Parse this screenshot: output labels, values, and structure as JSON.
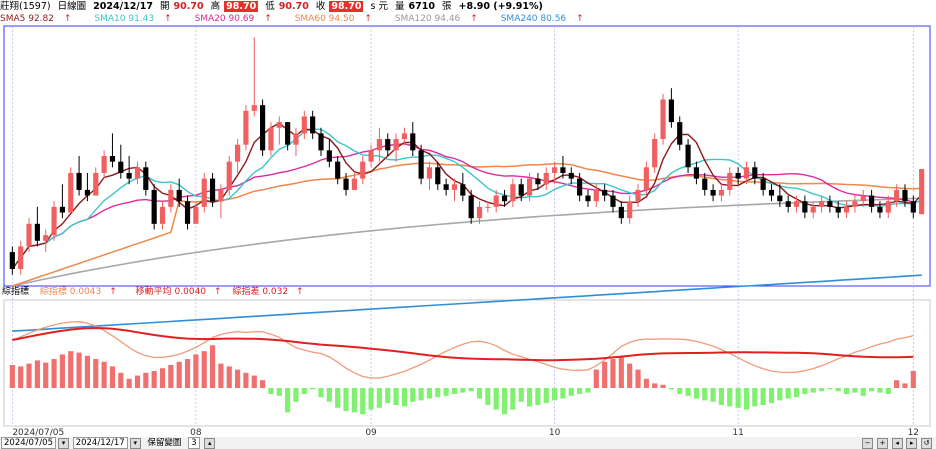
{
  "header": {
    "name": "莊翔(1597)",
    "period": "日線圖",
    "date": "2024/12/17",
    "open_label": "開",
    "open": "90.70",
    "high_label": "高",
    "high": "98.70",
    "low_label": "低",
    "low": "90.70",
    "close_label": "收",
    "close": "98.70",
    "unit": "s 元",
    "vol_label": "量",
    "volume": "6710",
    "vol_unit": "張",
    "change": "+8.90 (+9.91%)"
  },
  "ma_legend": [
    {
      "label": "SMA5 92.82",
      "color": "#8b1a1a"
    },
    {
      "label": "SMA10 91.43",
      "color": "#3cc6c8"
    },
    {
      "label": "SMA20 90.69",
      "color": "#e0289c"
    },
    {
      "label": "SMA60 94.50",
      "color": "#f0874a"
    },
    {
      "label": "SMA120 94.46",
      "color": "#a8a8a8"
    },
    {
      "label": "SMA240 80.56",
      "color": "#2e8fd8"
    }
  ],
  "indicator_legend": [
    {
      "label": "綜指標",
      "color": "#000000"
    },
    {
      "label": "綜指標 0.0043",
      "color": "#f0874a"
    },
    {
      "label": "移動平均 0.0040",
      "color": "#e02020"
    },
    {
      "label": "綜指差 0.032",
      "color": "#e02020"
    }
  ],
  "footer": {
    "start": "2024/07/05",
    "end": "2024/12/17",
    "label": "保留變圖",
    "value": "3"
  },
  "chart_data": [
    {
      "type": "candlestick",
      "x_ticks": [
        "2024/07/05",
        "08",
        "09",
        "10",
        "11",
        "12"
      ],
      "up_color": "#f06060",
      "down_color": "#000000",
      "candles_ohlc": [
        [
          84,
          85,
          80,
          81
        ],
        [
          81,
          86,
          80,
          85
        ],
        [
          85,
          90,
          84,
          89
        ],
        [
          89,
          92,
          85,
          86
        ],
        [
          86,
          88,
          84,
          87
        ],
        [
          87,
          93,
          86,
          92
        ],
        [
          92,
          96,
          90,
          91
        ],
        [
          91,
          99,
          91,
          98
        ],
        [
          98,
          101,
          94,
          95
        ],
        [
          95,
          98,
          93,
          94
        ],
        [
          94,
          99,
          94,
          98
        ],
        [
          98,
          102,
          97,
          101
        ],
        [
          101,
          105,
          99,
          100
        ],
        [
          100,
          103,
          97,
          98
        ],
        [
          98,
          101,
          96,
          97
        ],
        [
          97,
          100,
          96,
          99
        ],
        [
          99,
          100,
          94,
          95
        ],
        [
          95,
          96,
          88,
          89
        ],
        [
          89,
          93,
          88,
          92
        ],
        [
          92,
          96,
          91,
          95
        ],
        [
          95,
          97,
          92,
          93
        ],
        [
          93,
          94,
          88,
          89
        ],
        [
          89,
          93,
          89,
          92
        ],
        [
          92,
          98,
          91,
          97
        ],
        [
          97,
          98,
          92,
          93
        ],
        [
          93,
          96,
          90,
          95
        ],
        [
          95,
          101,
          94,
          100
        ],
        [
          100,
          104,
          98,
          103
        ],
        [
          103,
          110,
          102,
          109
        ],
        [
          109,
          122,
          108,
          110
        ],
        [
          110,
          111,
          101,
          102
        ],
        [
          102,
          107,
          101,
          106
        ],
        [
          106,
          108,
          103,
          107
        ],
        [
          107,
          107,
          102,
          103
        ],
        [
          103,
          106,
          101,
          105
        ],
        [
          105,
          109,
          104,
          108
        ],
        [
          108,
          109,
          104,
          105
        ],
        [
          105,
          106,
          101,
          102
        ],
        [
          102,
          104,
          99,
          100
        ],
        [
          100,
          101,
          96,
          97
        ],
        [
          97,
          98,
          94,
          95
        ],
        [
          95,
          98,
          95,
          97
        ],
        [
          97,
          101,
          96,
          100
        ],
        [
          100,
          103,
          99,
          102
        ],
        [
          102,
          106,
          100,
          104
        ],
        [
          104,
          105,
          101,
          102
        ],
        [
          102,
          105,
          100,
          104
        ],
        [
          104,
          106,
          103,
          105
        ],
        [
          105,
          107,
          101,
          102
        ],
        [
          102,
          103,
          96,
          97
        ],
        [
          97,
          100,
          95,
          99
        ],
        [
          99,
          100,
          95,
          96
        ],
        [
          96,
          97,
          94,
          95
        ],
        [
          95,
          97,
          93,
          96
        ],
        [
          96,
          98,
          93,
          94
        ],
        [
          94,
          95,
          89,
          90
        ],
        [
          90,
          93,
          89,
          92
        ],
        [
          92,
          93,
          91,
          92
        ],
        [
          92,
          95,
          91,
          94
        ],
        [
          94,
          95,
          92,
          93
        ],
        [
          93,
          97,
          92,
          96
        ],
        [
          96,
          97,
          93,
          94
        ],
        [
          94,
          98,
          93,
          97
        ],
        [
          97,
          98,
          95,
          96
        ],
        [
          96,
          99,
          95,
          98
        ],
        [
          98,
          100,
          96,
          99
        ],
        [
          99,
          101,
          97,
          98
        ],
        [
          98,
          99,
          96,
          97
        ],
        [
          97,
          98,
          93,
          94
        ],
        [
          94,
          95,
          92,
          93
        ],
        [
          93,
          96,
          92,
          95
        ],
        [
          95,
          96,
          93,
          94
        ],
        [
          94,
          95,
          91,
          92
        ],
        [
          92,
          93,
          89,
          90
        ],
        [
          90,
          94,
          89,
          93
        ],
        [
          93,
          96,
          92,
          95
        ],
        [
          95,
          100,
          94,
          99
        ],
        [
          99,
          105,
          98,
          104
        ],
        [
          104,
          112,
          103,
          111
        ],
        [
          111,
          113,
          106,
          107
        ],
        [
          107,
          108,
          102,
          103
        ],
        [
          103,
          104,
          98,
          99
        ],
        [
          99,
          100,
          96,
          97
        ],
        [
          97,
          98,
          94,
          95
        ],
        [
          95,
          96,
          93,
          94
        ],
        [
          94,
          96,
          93,
          95
        ],
        [
          95,
          99,
          94,
          98
        ],
        [
          98,
          99,
          96,
          97
        ],
        [
          97,
          100,
          96,
          99
        ],
        [
          99,
          100,
          96,
          97
        ],
        [
          97,
          98,
          94,
          95
        ],
        [
          95,
          96,
          93,
          94
        ],
        [
          94,
          96,
          92,
          93
        ],
        [
          93,
          94,
          91,
          92
        ],
        [
          92,
          94,
          91,
          93
        ],
        [
          93,
          94,
          90,
          91
        ],
        [
          91,
          93,
          90,
          92
        ],
        [
          92,
          94,
          91,
          93
        ],
        [
          93,
          94,
          91,
          92
        ],
        [
          92,
          93,
          90,
          91
        ],
        [
          91,
          93,
          90,
          92
        ],
        [
          92,
          94,
          91,
          93
        ],
        [
          93,
          95,
          92,
          94
        ],
        [
          94,
          95,
          91,
          92
        ],
        [
          92,
          93,
          90,
          91
        ],
        [
          91,
          94,
          90,
          93
        ],
        [
          93,
          96,
          92,
          95
        ],
        [
          95,
          96,
          92,
          93
        ],
        [
          93,
          94,
          90,
          91
        ],
        [
          90.7,
          98.7,
          90.7,
          98.7
        ]
      ],
      "volume_bars_approx": [
        0.5,
        0.47,
        0.53,
        0.6,
        0.55,
        0.63,
        0.73,
        0.8,
        0.77,
        0.7,
        0.63,
        0.57,
        0.47,
        0.33,
        0.2,
        0.27,
        0.33,
        0.37,
        0.43,
        0.5,
        0.57,
        0.63,
        0.73,
        0.8,
        0.93,
        0.53,
        0.47,
        0.4,
        0.33,
        0.27,
        0.17,
        -0.13,
        -0.17,
        -0.53,
        -0.3,
        -0.13,
        -0.03,
        -0.2,
        -0.3,
        -0.43,
        -0.5,
        -0.53,
        -0.57,
        -0.47,
        -0.43,
        -0.33,
        -0.37,
        -0.4,
        -0.3,
        -0.27,
        -0.23,
        -0.2,
        -0.17,
        -0.13,
        -0.1,
        -0.07,
        -0.23,
        -0.37,
        -0.47,
        -0.57,
        -0.47,
        -0.3,
        -0.4,
        -0.37,
        -0.33,
        -0.27,
        -0.23,
        -0.17,
        -0.13,
        -0.1,
        0.4,
        0.57,
        0.63,
        0.67,
        0.53,
        0.4,
        0.2,
        0.1,
        0.07,
        -0.03,
        -0.13,
        -0.17,
        -0.23,
        -0.27,
        -0.3,
        -0.37,
        -0.4,
        -0.43,
        -0.47,
        -0.4,
        -0.37,
        -0.33,
        -0.27,
        -0.23,
        -0.2,
        -0.13,
        -0.1,
        -0.07,
        -0.03,
        -0.07,
        -0.13,
        -0.1,
        -0.17,
        -0.07,
        -0.1,
        -0.13,
        0.17,
        0.1,
        0.37
      ]
    }
  ],
  "colors": {
    "grid": "#b0b0ff",
    "frame": "#3a3aff",
    "up": "#f06060",
    "down": "#000000",
    "hist_pos": "#f07070",
    "hist_neg": "#80f070",
    "ind_line": "#f39a7a",
    "ind_avg": "#e02020"
  }
}
